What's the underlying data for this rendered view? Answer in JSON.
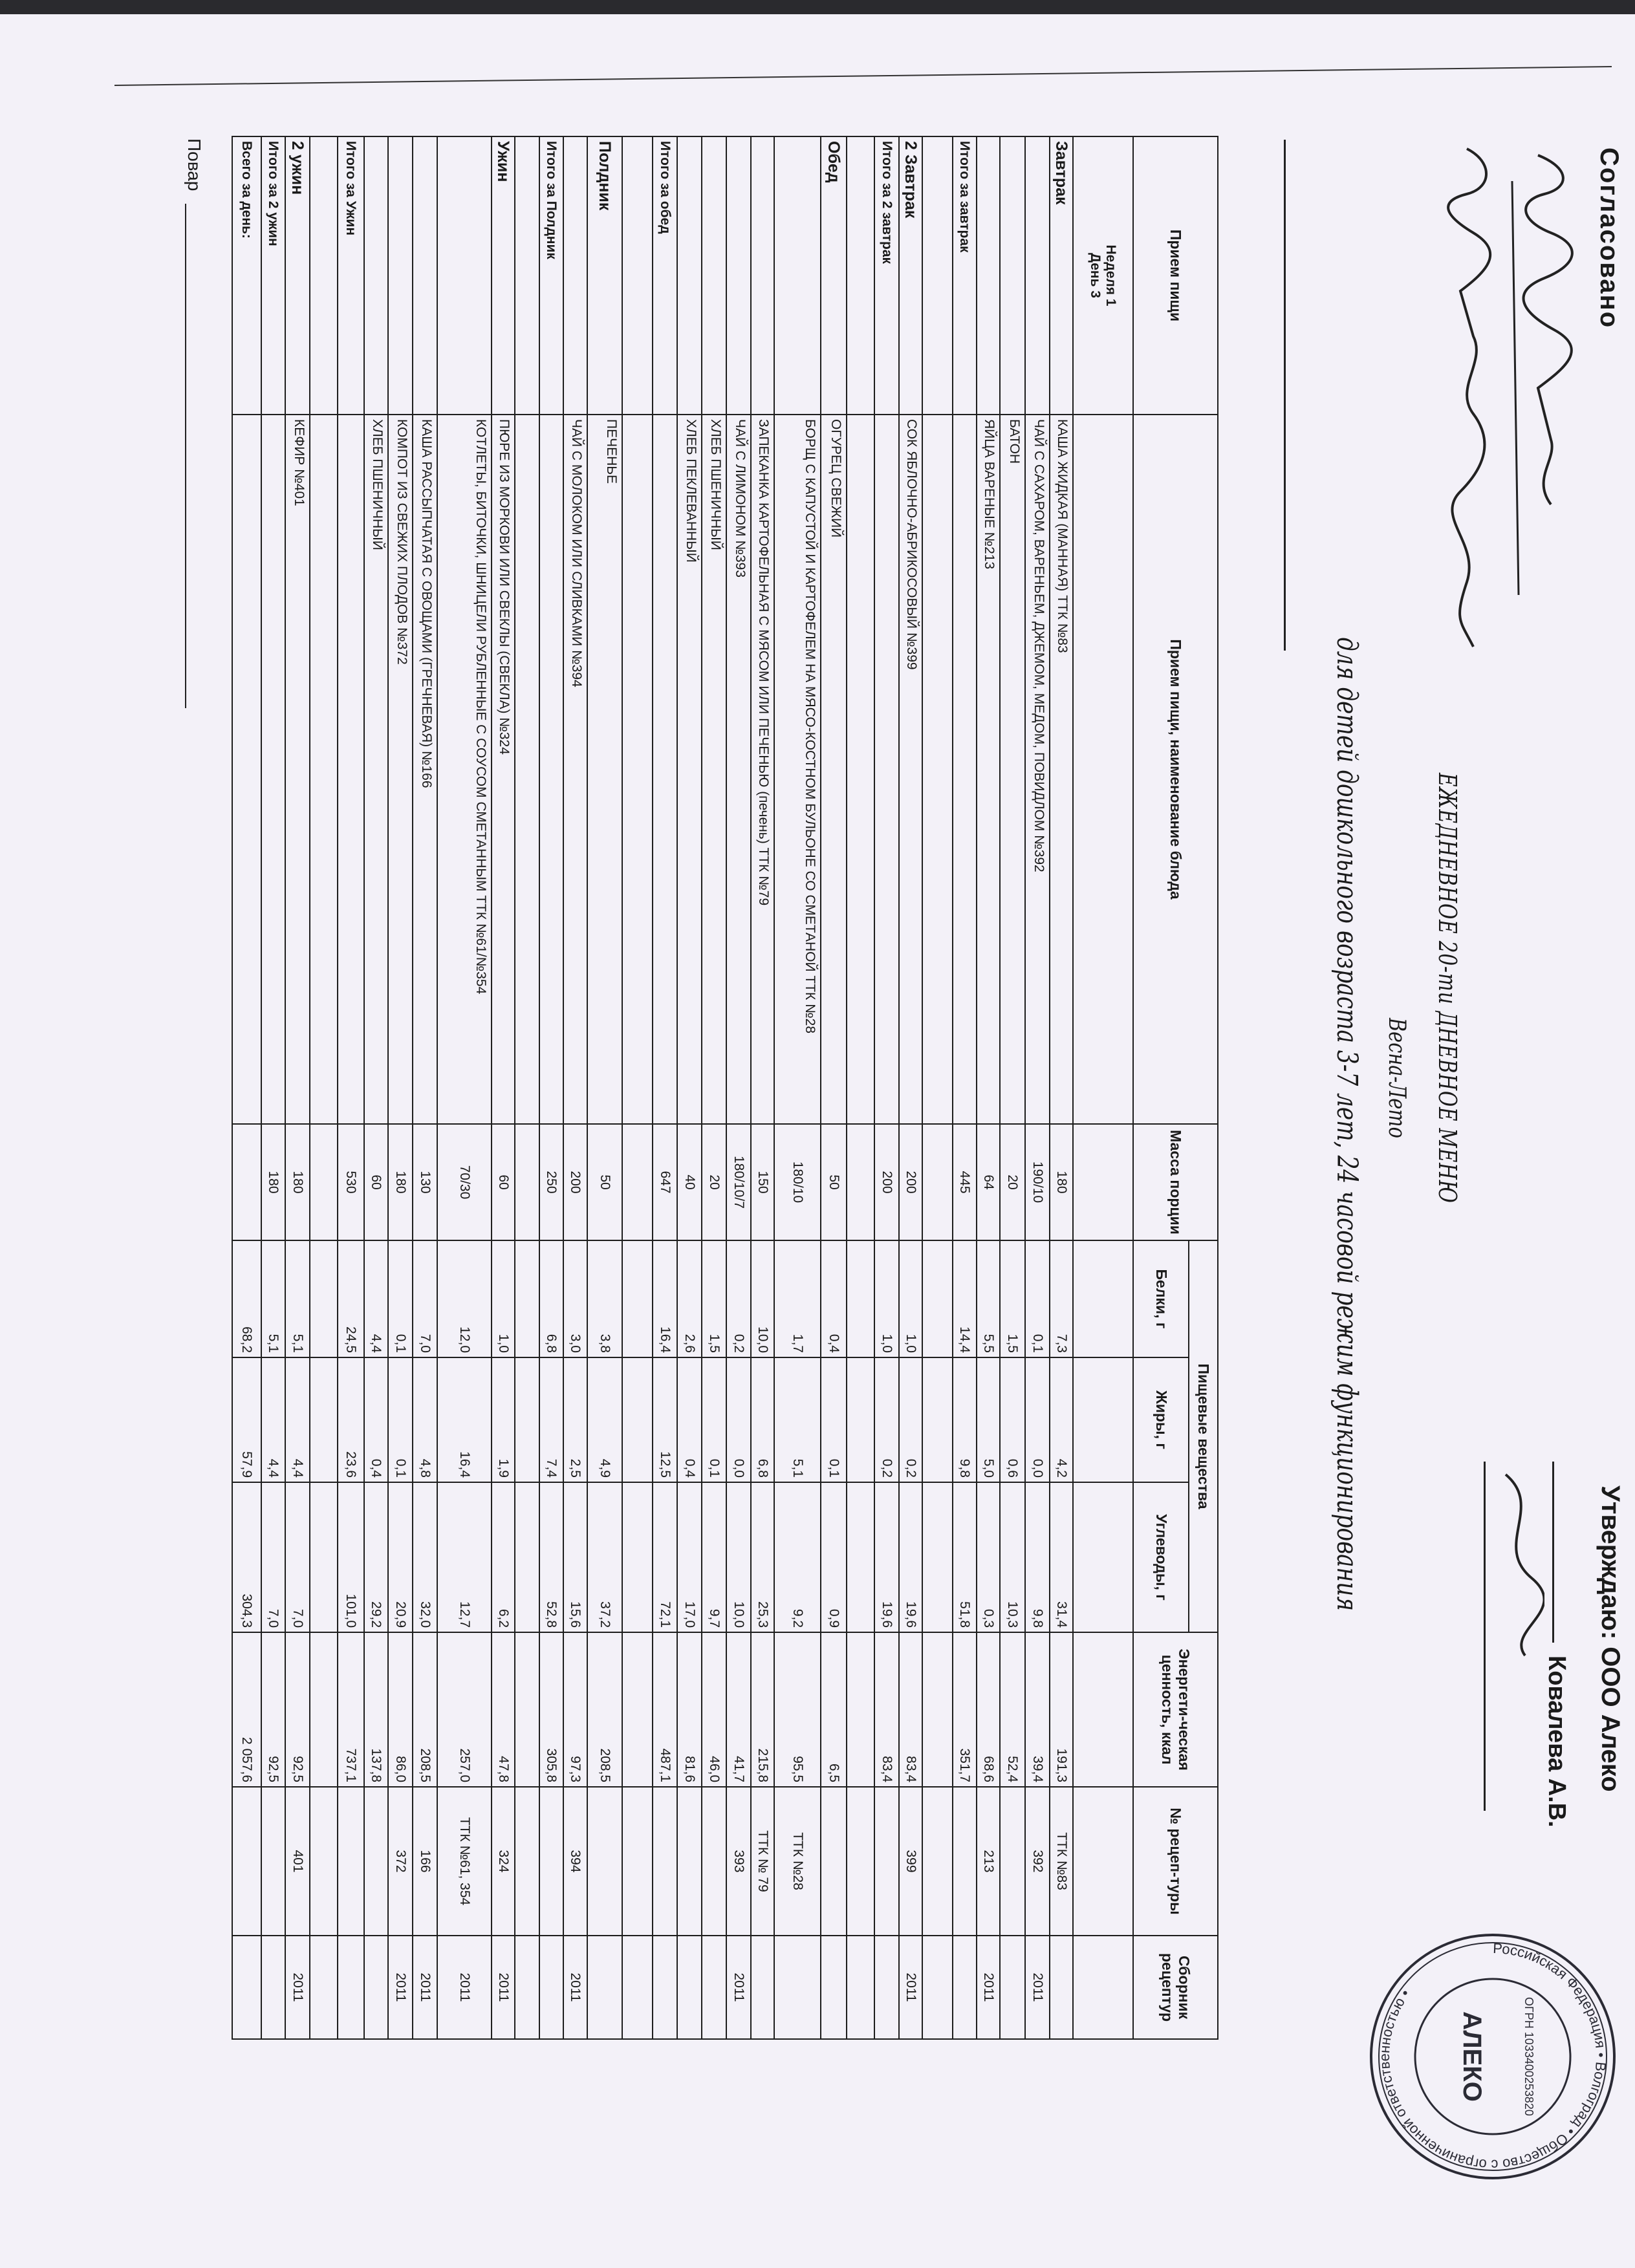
{
  "header": {
    "agreed_label": "Согласовано",
    "approve_label": "Утверждаю: ООО Алеко",
    "approver_name": "Ковалева А.В.",
    "title": "ЕЖЕДНЕВНОЕ 20-ти ДНЕВНОЕ МЕНЮ",
    "season": "Весна-Лето",
    "subtitle": "для детей дошкольного возраста 3-7 лет, 24 часовой режим функционирования",
    "week": "Неделя 1",
    "day": "День 3"
  },
  "stamp": {
    "outer_text": "Российская Федерация • Волгоград • Общество с ограниченной ответственностью •",
    "ogrn": "ОГРН 1033400253820",
    "name": "АЛЕКО"
  },
  "table": {
    "columns": {
      "meal": "Прием пищи",
      "dish": "Прием пищи, наименование блюда",
      "mass": "Масса порции",
      "nutrients": "Пищевые вещества",
      "protein": "Белки, г",
      "fat": "Жиры, г",
      "carbs": "Углеводы, г",
      "energy": "Энергети-ческая ценность, ккал",
      "recipe": "№ рецеп-туры",
      "collection": "Сборник рецептур"
    },
    "rows": [
      {
        "meal": "",
        "dish": "",
        "mass": "",
        "protein": "",
        "fat": "",
        "carbs": "",
        "energy": "",
        "recipe": "",
        "collection": ""
      },
      {
        "meal": "Завтрак",
        "dish": "КАША ЖИДКАЯ (МАННАЯ) ТТК №83",
        "mass": "180",
        "protein": "7,3",
        "fat": "4,2",
        "carbs": "31,4",
        "energy": "191,3",
        "recipe": "ТТК №83",
        "collection": ""
      },
      {
        "meal": "",
        "dish": "ЧАЙ С САХАРОМ, ВАРЕНЬЕМ, ДЖЕМОМ, МЕДОМ, ПОВИДЛОМ №392",
        "mass": "190/10",
        "protein": "0,1",
        "fat": "0,0",
        "carbs": "9,8",
        "energy": "39,4",
        "recipe": "392",
        "collection": "2011"
      },
      {
        "meal": "",
        "dish": "БАТОН",
        "mass": "20",
        "protein": "1,5",
        "fat": "0,6",
        "carbs": "10,3",
        "energy": "52,4",
        "recipe": "",
        "collection": ""
      },
      {
        "meal": "",
        "dish": "ЯЙЦА ВАРЕНЫЕ №213",
        "mass": "64",
        "protein": "5,5",
        "fat": "5,0",
        "carbs": "0,3",
        "energy": "68,6",
        "recipe": "213",
        "collection": "2011"
      },
      {
        "meal": "Итого за завтрак",
        "total": true,
        "dish": "",
        "mass": "445",
        "protein": "14,4",
        "fat": "9,8",
        "carbs": "51,8",
        "energy": "351,7",
        "recipe": "",
        "collection": ""
      },
      {
        "meal": "",
        "dish": "",
        "mass": "",
        "protein": "",
        "fat": "",
        "carbs": "",
        "energy": "",
        "recipe": "",
        "collection": ""
      },
      {
        "meal": "2 Завтрак",
        "dish": "СОК ЯБЛОЧНО-АБРИКОСОВЫЙ №399",
        "mass": "200",
        "protein": "1,0",
        "fat": "0,2",
        "carbs": "19,6",
        "energy": "83,4",
        "recipe": "399",
        "collection": "2011"
      },
      {
        "meal": "Итого за 2 завтрак",
        "total": true,
        "dish": "",
        "mass": "200",
        "protein": "1,0",
        "fat": "0,2",
        "carbs": "19,6",
        "energy": "83,4",
        "recipe": "",
        "collection": ""
      },
      {
        "meal": "",
        "dish": "",
        "mass": "",
        "protein": "",
        "fat": "",
        "carbs": "",
        "energy": "",
        "recipe": "",
        "collection": ""
      },
      {
        "meal": "Обед",
        "dish": "ОГУРЕЦ СВЕЖИЙ",
        "mass": "50",
        "protein": "0,4",
        "fat": "0,1",
        "carbs": "0,9",
        "energy": "6,5",
        "recipe": "",
        "collection": ""
      },
      {
        "meal": "",
        "dish": "БОРЩ С КАПУСТОЙ И КАРТОФЕЛЕМ НА МЯСО-КОСТНОМ БУЛЬОНЕ СО СМЕТАНОЙ ТТК №28",
        "mass": "180/10",
        "protein": "1,7",
        "fat": "5,1",
        "carbs": "9,2",
        "energy": "95,5",
        "recipe": "ТТК №28",
        "collection": ""
      },
      {
        "meal": "",
        "dish": "ЗАПЕКАНКА КАРТОФЕЛЬНАЯ С МЯСОМ ИЛИ ПЕЧЕНЬЮ (печень) ТТК №79",
        "mass": "150",
        "protein": "10,0",
        "fat": "6,8",
        "carbs": "25,3",
        "energy": "215,8",
        "recipe": "ТТК № 79",
        "collection": ""
      },
      {
        "meal": "",
        "dish": "ЧАЙ С ЛИМОНОМ №393",
        "mass": "180/10/7",
        "protein": "0,2",
        "fat": "0,0",
        "carbs": "10,0",
        "energy": "41,7",
        "recipe": "393",
        "collection": "2011"
      },
      {
        "meal": "",
        "dish": "ХЛЕБ ПШЕНИЧНЫЙ",
        "mass": "20",
        "protein": "1,5",
        "fat": "0,1",
        "carbs": "9,7",
        "energy": "46,0",
        "recipe": "",
        "collection": ""
      },
      {
        "meal": "",
        "dish": "ХЛЕБ ПЕКЛЕВАННЫЙ",
        "mass": "40",
        "protein": "2,6",
        "fat": "0,4",
        "carbs": "17,0",
        "energy": "81,6",
        "recipe": "",
        "collection": ""
      },
      {
        "meal": "Итого за обед",
        "total": true,
        "dish": "",
        "mass": "647",
        "protein": "16,4",
        "fat": "12,5",
        "carbs": "72,1",
        "energy": "487,1",
        "recipe": "",
        "collection": ""
      },
      {
        "meal": "",
        "dish": "",
        "mass": "",
        "protein": "",
        "fat": "",
        "carbs": "",
        "energy": "",
        "recipe": "",
        "collection": ""
      },
      {
        "meal": "Полдник",
        "dish": "ПЕЧЕНЬЕ",
        "mass": "50",
        "protein": "3,8",
        "fat": "4,9",
        "carbs": "37,2",
        "energy": "208,5",
        "recipe": "",
        "collection": ""
      },
      {
        "meal": "",
        "dish": "ЧАЙ С МОЛОКОМ ИЛИ СЛИВКАМИ №394",
        "mass": "200",
        "protein": "3,0",
        "fat": "2,5",
        "carbs": "15,6",
        "energy": "97,3",
        "recipe": "394",
        "collection": "2011"
      },
      {
        "meal": "Итого за Полдник",
        "total": true,
        "dish": "",
        "mass": "250",
        "protein": "6,8",
        "fat": "7,4",
        "carbs": "52,8",
        "energy": "305,8",
        "recipe": "",
        "collection": ""
      },
      {
        "meal": "",
        "dish": "",
        "mass": "",
        "protein": "",
        "fat": "",
        "carbs": "",
        "energy": "",
        "recipe": "",
        "collection": ""
      },
      {
        "meal": "Ужин",
        "dish": "ПЮРЕ ИЗ МОРКОВИ ИЛИ СВЕКЛЫ (СВЕКЛА) №324",
        "mass": "60",
        "protein": "1,0",
        "fat": "1,9",
        "carbs": "6,2",
        "energy": "47,8",
        "recipe": "324",
        "collection": "2011"
      },
      {
        "meal": "",
        "dish": "КОТЛЕТЫ, БИТОЧКИ, ШНИЦЕЛИ РУБЛЕННЫЕ С СОУСОМ СМЕТАННЫМ ТТК №61/№354",
        "mass": "70/30",
        "protein": "12,0",
        "fat": "16,4",
        "carbs": "12,7",
        "energy": "257,0",
        "recipe": "ТТК №61, 354",
        "collection": "2011"
      },
      {
        "meal": "",
        "dish": "КАША РАССЫПЧАТАЯ С ОВОЩАМИ (ГРЕЧНЕВАЯ) №166",
        "mass": "130",
        "protein": "7,0",
        "fat": "4,8",
        "carbs": "32,0",
        "energy": "208,5",
        "recipe": "166",
        "collection": "2011"
      },
      {
        "meal": "",
        "dish": "КОМПОТ ИЗ СВЕЖИХ ПЛОДОВ №372",
        "mass": "180",
        "protein": "0,1",
        "fat": "0,1",
        "carbs": "20,9",
        "energy": "86,0",
        "recipe": "372",
        "collection": "2011"
      },
      {
        "meal": "",
        "dish": "ХЛЕБ ПШЕНИЧНЫЙ",
        "mass": "60",
        "protein": "4,4",
        "fat": "0,4",
        "carbs": "29,2",
        "energy": "137,8",
        "recipe": "",
        "collection": ""
      },
      {
        "meal": "Итого за Ужин",
        "total": true,
        "dish": "",
        "mass": "530",
        "protein": "24,5",
        "fat": "23,6",
        "carbs": "101,0",
        "energy": "737,1",
        "recipe": "",
        "collection": ""
      },
      {
        "meal": "",
        "dish": "",
        "mass": "",
        "protein": "",
        "fat": "",
        "carbs": "",
        "energy": "",
        "recipe": "",
        "collection": ""
      },
      {
        "meal": "2 ужин",
        "dish": "КЕФИР №401",
        "mass": "180",
        "protein": "5,1",
        "fat": "4,4",
        "carbs": "7,0",
        "energy": "92,5",
        "recipe": "401",
        "collection": "2011"
      },
      {
        "meal": "Итого за 2 ужин",
        "total": true,
        "dish": "",
        "mass": "180",
        "protein": "5,1",
        "fat": "4,4",
        "carbs": "7,0",
        "energy": "92,5",
        "recipe": "",
        "collection": ""
      },
      {
        "meal": "Всего за день:",
        "total": true,
        "dish": "",
        "mass": "",
        "protein": "68,2",
        "fat": "57,9",
        "carbs": "304,3",
        "energy": "2 057,6",
        "recipe": "",
        "collection": ""
      }
    ]
  },
  "footer": {
    "cook_label": "Повар"
  }
}
